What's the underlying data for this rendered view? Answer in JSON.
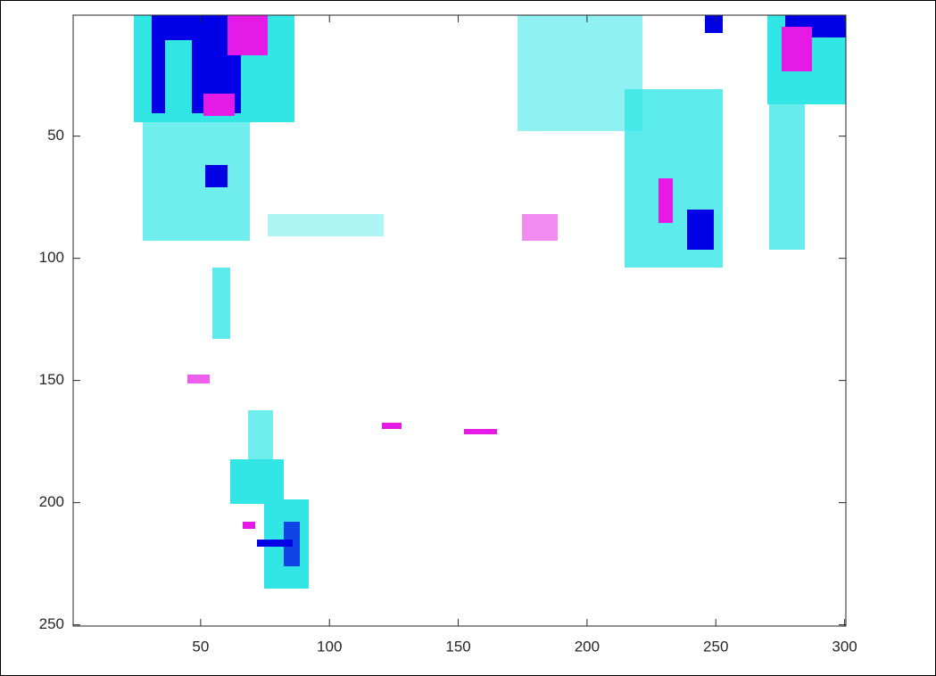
{
  "chart_data": {
    "type": "image",
    "xlim": [
      0.5,
      300.5
    ],
    "ylim": [
      0.5,
      250.5
    ],
    "y_reversed": true,
    "xticks": [
      50,
      100,
      150,
      200,
      250,
      300
    ],
    "yticks": [
      50,
      100,
      150,
      200,
      250
    ]
  }
}
